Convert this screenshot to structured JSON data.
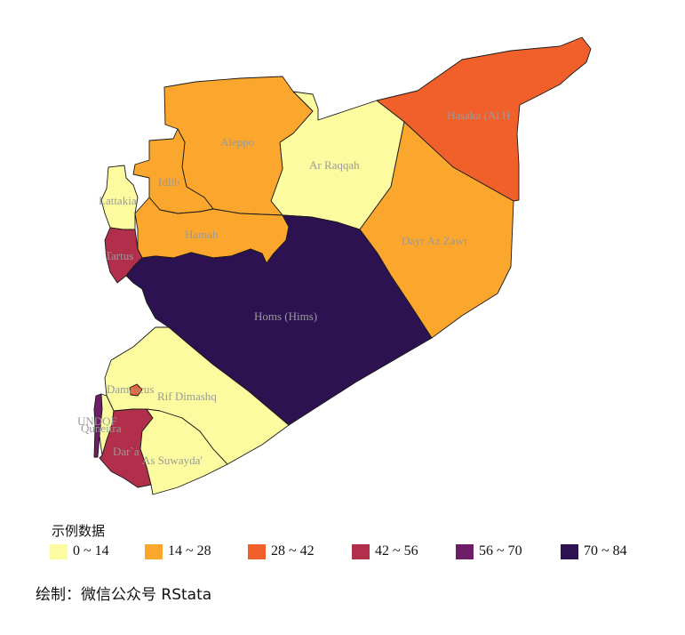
{
  "regions": [
    {
      "id": "hasaka",
      "label": "Hasaka (Al H",
      "color": "#f1602a"
    },
    {
      "id": "ar-raqqah",
      "label": "Ar Raqqah",
      "color": "#fcfba0"
    },
    {
      "id": "aleppo",
      "label": "Aleppo",
      "color": "#fba62c"
    },
    {
      "id": "idlib",
      "label": "Idlib",
      "color": "#fba62c"
    },
    {
      "id": "lattakia",
      "label": "Lattakia",
      "color": "#fcfba0"
    },
    {
      "id": "hamah",
      "label": "Hamah",
      "color": "#fba62c"
    },
    {
      "id": "tartus",
      "label": "Tartus",
      "color": "#b12f4b"
    },
    {
      "id": "dayr-az-zawr",
      "label": "Dayr Az Zawr",
      "color": "#fba62c"
    },
    {
      "id": "homs",
      "label": "Homs (Hims)",
      "color": "#2c1250"
    },
    {
      "id": "rif-dimashq",
      "label": "Rif Dimashq",
      "color": "#fcfba0"
    },
    {
      "id": "damascus",
      "label": "Damascus",
      "color": "#f1602a"
    },
    {
      "id": "undof",
      "label": "UNDOF",
      "color": "#6f1d66"
    },
    {
      "id": "quneitra",
      "label": "Quneitra",
      "color": "#fcfba0"
    },
    {
      "id": "dara",
      "label": "Dar`a",
      "color": "#b12f4b"
    },
    {
      "id": "as-suwayda",
      "label": "As Suwayda'",
      "color": "#fcfba0"
    }
  ],
  "legend": {
    "title": "示例数据",
    "items": [
      {
        "label": "0 ~ 14",
        "color": "#fcfba0"
      },
      {
        "label": "14 ~ 28",
        "color": "#fba62c"
      },
      {
        "label": "28 ~ 42",
        "color": "#f1602a"
      },
      {
        "label": "42 ~ 56",
        "color": "#b12f4b"
      },
      {
        "label": "56 ~ 70",
        "color": "#6f1d66"
      },
      {
        "label": "70 ~ 84",
        "color": "#2c1250"
      }
    ]
  },
  "caption": "绘制：微信公众号 RStata"
}
